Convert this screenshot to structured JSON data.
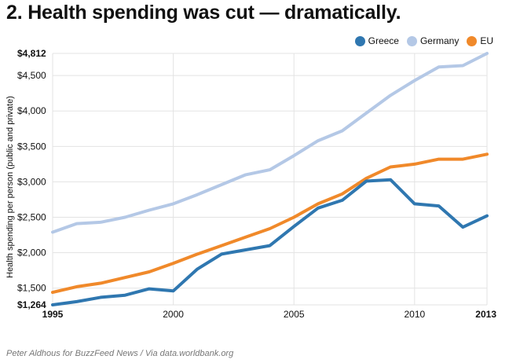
{
  "title": "2. Health spending was cut — dramatically.",
  "source": "Peter Aldhous for BuzzFeed News / Via data.worldbank.org",
  "colors": {
    "grid": "#e3e3e3",
    "text": "#111111"
  },
  "chart_data": {
    "type": "line",
    "title": "2. Health spending was cut — dramatically.",
    "ylabel": "Health spending per person (public and private)",
    "xlabel": "",
    "xlim": [
      1995,
      2013
    ],
    "ylim": [
      1264,
      4812
    ],
    "x_ticks": [
      {
        "value": 1995,
        "label": "1995",
        "bold": true
      },
      {
        "value": 2000,
        "label": "2000",
        "bold": false
      },
      {
        "value": 2005,
        "label": "2005",
        "bold": false
      },
      {
        "value": 2010,
        "label": "2010",
        "bold": false
      },
      {
        "value": 2013,
        "label": "2013",
        "bold": true
      }
    ],
    "y_ticks": [
      {
        "value": 1264,
        "label": "$1,264",
        "bold": true
      },
      {
        "value": 1500,
        "label": "$1,500",
        "bold": false
      },
      {
        "value": 2000,
        "label": "$2,000",
        "bold": false
      },
      {
        "value": 2500,
        "label": "$2,500",
        "bold": false
      },
      {
        "value": 3000,
        "label": "$3,000",
        "bold": false
      },
      {
        "value": 3500,
        "label": "$3,500",
        "bold": false
      },
      {
        "value": 4000,
        "label": "$4,000",
        "bold": false
      },
      {
        "value": 4500,
        "label": "$4,500",
        "bold": false
      },
      {
        "value": 4812,
        "label": "$4,812",
        "bold": true
      }
    ],
    "grid": true,
    "legend_position": "top-right",
    "x": [
      1995,
      1996,
      1997,
      1998,
      1999,
      2000,
      2001,
      2002,
      2003,
      2004,
      2005,
      2006,
      2007,
      2008,
      2009,
      2010,
      2011,
      2012,
      2013
    ],
    "series": [
      {
        "name": "Greece",
        "color": "#2f77b0",
        "values": [
          1264,
          1310,
          1370,
          1400,
          1490,
          1460,
          1770,
          1980,
          2040,
          2100,
          2370,
          2630,
          2740,
          3010,
          3030,
          2690,
          2660,
          2360,
          2520
        ]
      },
      {
        "name": "Germany",
        "color": "#b4c8e6",
        "values": [
          2290,
          2410,
          2430,
          2500,
          2600,
          2690,
          2820,
          2960,
          3100,
          3170,
          3370,
          3580,
          3720,
          3970,
          4220,
          4430,
          4620,
          4640,
          4812
        ]
      },
      {
        "name": "EU",
        "color": "#f0892a",
        "values": [
          1440,
          1520,
          1570,
          1650,
          1730,
          1850,
          1980,
          2100,
          2220,
          2340,
          2500,
          2690,
          2830,
          3050,
          3210,
          3250,
          3320,
          3320,
          3390
        ]
      }
    ]
  }
}
